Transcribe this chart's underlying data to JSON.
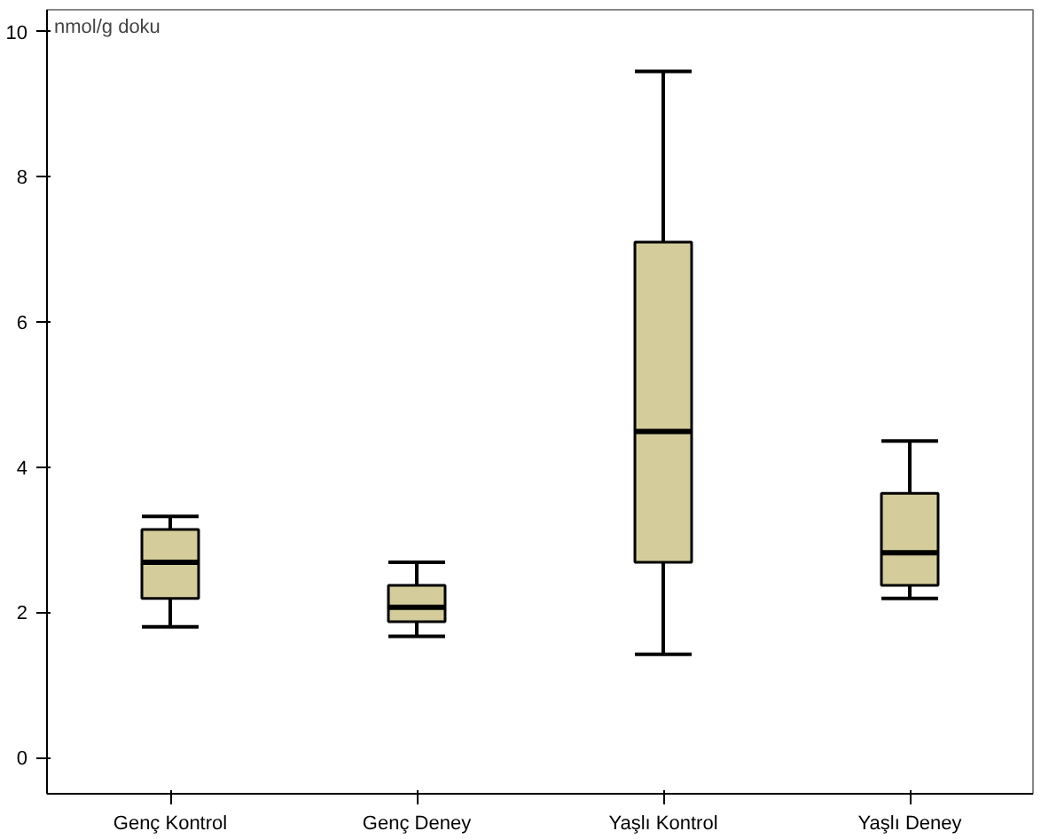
{
  "chart_data": {
    "type": "box",
    "ylabel": "nmol/g doku",
    "categories": [
      "Genç Kontrol",
      "Genç Deney",
      "Yaşlı Kontrol",
      "Yaşlı Deney"
    ],
    "boxes": [
      {
        "low": 1.8,
        "q1": 2.19,
        "median": 2.69,
        "q3": 3.14,
        "high": 3.32
      },
      {
        "low": 1.67,
        "q1": 1.87,
        "median": 2.07,
        "q3": 2.37,
        "high": 2.69
      },
      {
        "low": 1.42,
        "q1": 2.69,
        "median": 4.49,
        "q3": 7.1,
        "high": 9.45
      },
      {
        "low": 2.19,
        "q1": 2.37,
        "median": 2.82,
        "q3": 3.64,
        "high": 4.36
      }
    ],
    "color": "#d4cd9b",
    "ylim": [
      -0.5,
      10.3
    ],
    "yticks": [
      0,
      2,
      4,
      6,
      8,
      10
    ],
    "grid": false
  }
}
